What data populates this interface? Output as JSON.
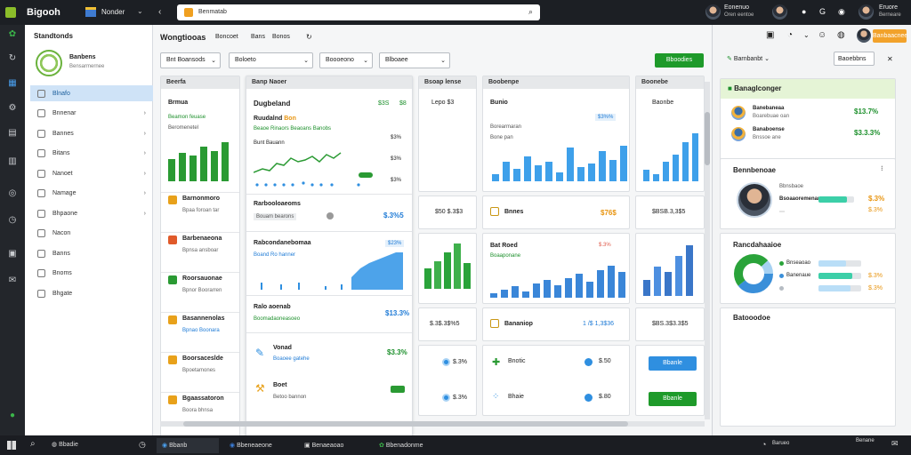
{
  "top": {
    "app_name": "Bigooh",
    "tab_label": "Nonder",
    "search_text": "Benmatab",
    "user_name": "Eonenuo",
    "user_sub": "Oren eentoe",
    "user_name2": "Eruore",
    "user_sub2": "Berneare"
  },
  "sidebar": {
    "title": "Standtonds",
    "profile_name": "Banbens",
    "profile_sub": "Bensarmernee",
    "items": [
      {
        "label": "Blnafo"
      },
      {
        "label": "Bnnenar"
      },
      {
        "label": "Bannes"
      },
      {
        "label": "Bitans"
      },
      {
        "label": "Nanoet"
      },
      {
        "label": "Namage"
      },
      {
        "label": "Bhpaone"
      },
      {
        "label": "Nacon"
      },
      {
        "label": "Banns"
      },
      {
        "label": "Bnoms"
      },
      {
        "label": "Bhgate"
      }
    ]
  },
  "header": {
    "title": "Wongtiooas",
    "tabs": [
      "Boncoet",
      "Bans",
      "Bonos"
    ]
  },
  "filters": [
    "Bnt Boansods",
    "Boloeto",
    "Boooeono",
    "Blboaee"
  ],
  "action_button": "Bboodies",
  "col1": {
    "head": "Beerfa",
    "title": "Brmua",
    "sub1": "Beamon feuase",
    "sub2": "Beromenetel",
    "items": [
      {
        "title": "Barnonmoro",
        "sub": "Bpaa foroan tar"
      },
      {
        "title": "Barbenaeona",
        "sub": "Bpnsa ansboar"
      },
      {
        "title": "Roorsauonae",
        "sub": "Bpnor Boorarren"
      },
      {
        "title": "Basannenolas",
        "sub": "Bpnao Boonara"
      },
      {
        "title": "Boorsaceslde",
        "sub": "Bpoetamones"
      },
      {
        "title": "Bgaassatoron",
        "sub": "Boora bhnsa"
      }
    ]
  },
  "panelA": {
    "head": "Banp Naoer",
    "title": "Dugbeland",
    "tag1": "$3S",
    "tag2": "$8",
    "sub_title": "Ruudalnd",
    "sub_badge": "Bon",
    "sub_link": "Beaoe Rinaors Beaoans Banobs",
    "labels": [
      "Bunt Bauann",
      "$3%",
      "$3%",
      "$3%"
    ],
    "row2_title": "Rarbooloaeoms",
    "row2_sub": "Bouam bearons",
    "row2_val": "$.3%5",
    "row3_title": "Rabcondanebomaa",
    "row3_sub": "Boand Ro hanner",
    "row3_tag": "$23%",
    "row4_title": "Ralo aoenab",
    "row4_sub": "Boomadaoneasoeo",
    "row4_val": "$13.3%",
    "row5_title": "Vonad",
    "row5_sub": "Boaoee gatehe",
    "row5_val": "$3.3%",
    "row6_title": "Boet",
    "row6_sub": "Betoo bannon"
  },
  "panelB": {
    "head": "Bsoap lense",
    "title": "Lepo $3",
    "val_a": "$50 $.3$3",
    "val_b": "$.3$.3$%5",
    "val_c": "$.3%",
    "val_d": "$.3%"
  },
  "panelC": {
    "head": "Boobenpe",
    "title": "Bunio",
    "tag": "$3%%",
    "sub1": "Borearmaran",
    "sub2": "Bone pan",
    "row_title": "Bnnes",
    "row_val": "$76$",
    "row2_title": "Bat Roed",
    "row2_tag": "$.3%",
    "row2_sub": "Boaaponane",
    "row3_title": "Bananiop",
    "row3_val": "1 /$ 1,3$36",
    "row4_label": "Bnotic",
    "row4_val": "$.50",
    "row5_label": "Bhaie",
    "row5_val": "$.80"
  },
  "panelD": {
    "head": "Boonebe",
    "title": "Baonbe",
    "val1": "$BSB.3,3$5",
    "val2": "$BS.3$3.3$5",
    "btn1": "Bbanle",
    "btn2": "Bbanle"
  },
  "right": {
    "head_btn": "Banbaacnee",
    "section_link": "Barnbanbt",
    "btn2": "Baoebbns",
    "box1_title": "Banaglconger",
    "box1_items": [
      {
        "name": "Banebaneaa",
        "sub": "Boarebuae oan",
        "val": "$13.7%"
      },
      {
        "name": "Banaboense",
        "sub": "Bnssoe ane",
        "val": "$3.3.3%"
      }
    ],
    "profile_title": "Bennbenoae",
    "profile_name": "Bbnsbaoe",
    "profile_sub": "Bsoaaoremenaneoe",
    "profile_val1": "$.3%",
    "profile_val2": "$.3%",
    "chart_title": "Rancdahaaioe",
    "legend": [
      {
        "label": "Bnseaoao",
        "val": ""
      },
      {
        "label": "Banenaue",
        "val": "$.3%"
      },
      {
        "label": "",
        "val": "$.3%"
      }
    ],
    "footer_title": "Batooodoe"
  },
  "taskbar": {
    "search": "Bbadie",
    "items": [
      "Bbanb",
      "Bbeneaeone",
      "Benaeaoao",
      "Bbenadonme"
    ],
    "time": "Barueo",
    "date": "Benane"
  },
  "colors": {
    "accent": "#1b8f2a",
    "blue": "#2f8fe0",
    "orange": "#e89511"
  }
}
